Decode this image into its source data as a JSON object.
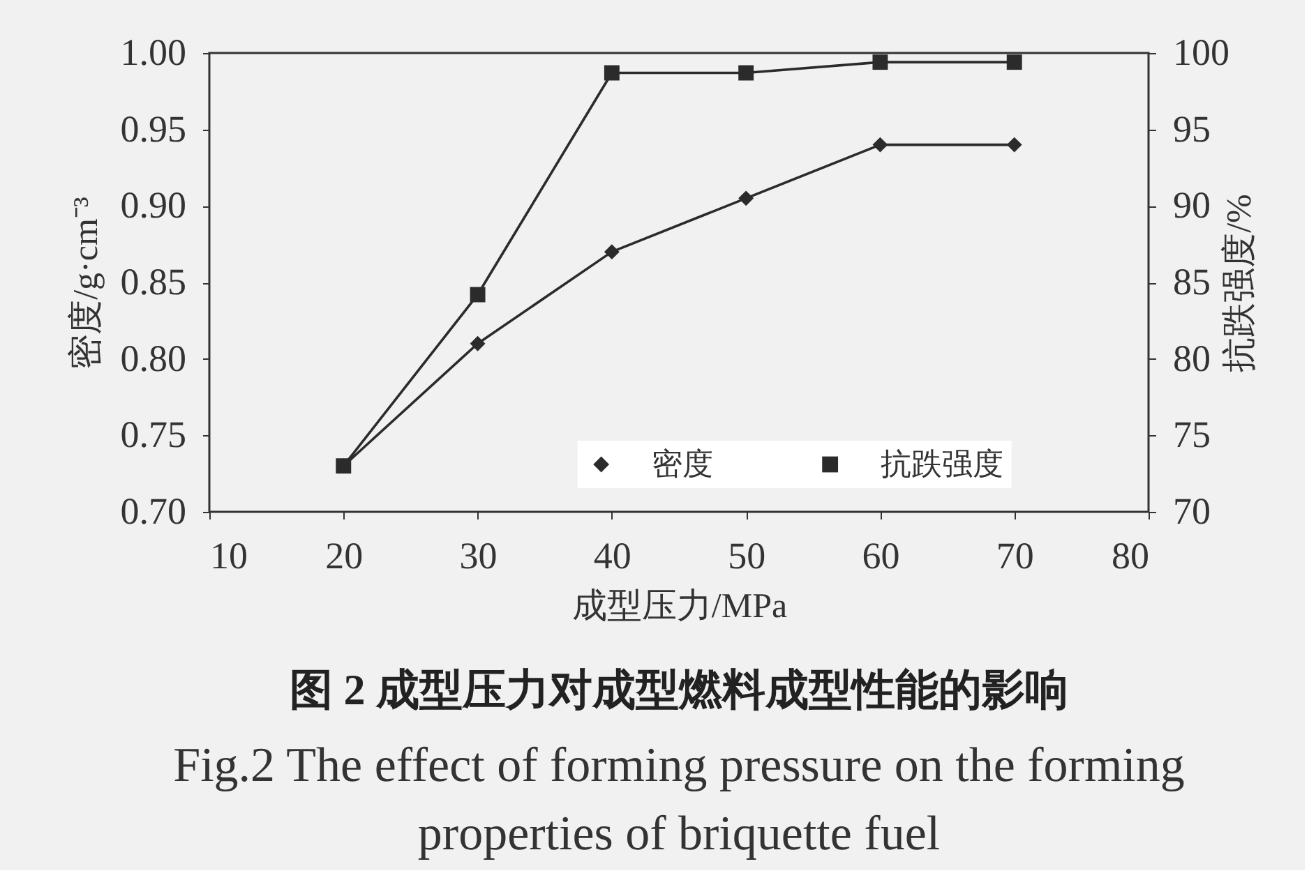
{
  "chart_data": {
    "type": "line",
    "title": "图 2  成型压力对成型燃料成型性能的影响",
    "subtitle": "Fig.2 The effect of forming pressure on the forming properties of briquette fuel",
    "xlabel": "成型压力/MPa",
    "ylabel": "密度/g·cm⁻³",
    "y2label": "抗跌强度/%",
    "x": [
      20,
      30,
      40,
      50,
      60,
      70
    ],
    "series": [
      {
        "name": "密度",
        "color": "#2b2b2b",
        "marker": "diamond",
        "values": [
          0.73,
          0.81,
          0.87,
          0.905,
          0.94,
          0.94
        ]
      },
      {
        "name": "抗跌强度",
        "color": "#2b2b2b",
        "marker": "square",
        "axis": "y2",
        "values": [
          73,
          84.2,
          98.7,
          98.7,
          99.4,
          99.4
        ]
      }
    ],
    "xlim": [
      10,
      80
    ],
    "xticks": [
      10,
      20,
      30,
      40,
      50,
      60,
      70,
      80
    ],
    "ylim": [
      0.7,
      1.0
    ],
    "yticks": [
      {
        "value": 0.7,
        "label": "0.70"
      },
      {
        "value": 0.75,
        "label": "0.75"
      },
      {
        "value": 0.8,
        "label": "0.80"
      },
      {
        "value": 0.85,
        "label": "0.85"
      },
      {
        "value": 0.9,
        "label": "0.90"
      },
      {
        "value": 0.95,
        "label": "0.95"
      },
      {
        "value": 1.0,
        "label": "1.00"
      }
    ],
    "y2lim": [
      70,
      100
    ],
    "y2ticks": [
      70,
      75,
      80,
      85,
      90,
      95,
      100
    ],
    "legend": "bottom right",
    "line_style": "solid"
  }
}
